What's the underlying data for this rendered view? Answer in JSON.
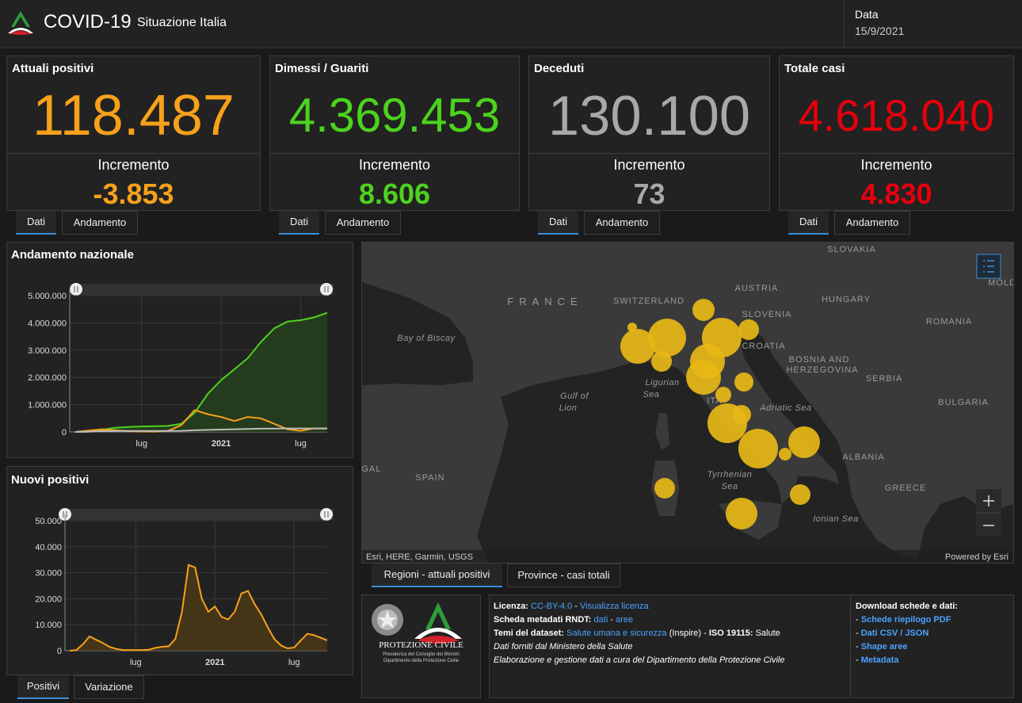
{
  "header": {
    "title": "COVID-19",
    "subtitle": "Situazione Italia",
    "date_label": "Data",
    "date": "15/9/2021"
  },
  "cards": [
    {
      "title": "Attuali positivi",
      "value": "118.487",
      "delta_label": "Incremento",
      "delta": "-3.853",
      "color": "#f7a11a",
      "tabs": [
        "Dati",
        "Andamento"
      ]
    },
    {
      "title": "Dimessi / Guariti",
      "value": "4.369.453",
      "delta_label": "Incremento",
      "delta": "8.606",
      "color": "#4cd31d",
      "tabs": [
        "Dati",
        "Andamento"
      ]
    },
    {
      "title": "Deceduti",
      "value": "130.100",
      "delta_label": "Incremento",
      "delta": "73",
      "color": "#a8a8a8",
      "tabs": [
        "Dati",
        "Andamento"
      ]
    },
    {
      "title": "Totale casi",
      "value": "4.618.040",
      "delta_label": "Incremento",
      "delta": "4.830",
      "color": "#e6000c",
      "tabs": [
        "Dati",
        "Andamento"
      ]
    }
  ],
  "chart_data": [
    {
      "type": "line",
      "title": "Andamento nazionale",
      "categories": [
        null,
        null,
        null,
        null,
        null,
        "lug",
        null,
        null,
        null,
        null,
        null,
        "2021",
        null,
        null,
        null,
        null,
        null,
        "lug",
        null,
        null
      ],
      "series": [
        {
          "color": "#4cd31d",
          "area_color": "#26401c",
          "values": [
            0,
            10000,
            80000,
            150000,
            180000,
            200000,
            210000,
            220000,
            300000,
            700000,
            1400000,
            1900000,
            2300000,
            2700000,
            3300000,
            3800000,
            4050000,
            4100000,
            4200000,
            4369453
          ]
        },
        {
          "color": "#f7a11a",
          "values": [
            0,
            50000,
            100000,
            60000,
            30000,
            15000,
            13000,
            40000,
            250000,
            800000,
            650000,
            550000,
            400000,
            550000,
            500000,
            300000,
            100000,
            40000,
            130000,
            118487
          ]
        },
        {
          "color": "#bdbdbd",
          "values": [
            0,
            12000,
            28000,
            33000,
            35000,
            35000,
            35000,
            36000,
            40000,
            60000,
            75000,
            88000,
            98000,
            110000,
            120000,
            126000,
            127000,
            128000,
            129000,
            130100
          ]
        }
      ],
      "ylim": [
        0,
        5000000
      ],
      "yticks": [
        0,
        {
          "value": 1000000,
          "label": "1.000.000"
        },
        {
          "value": 2000000,
          "label": "2.000.000"
        },
        {
          "value": 3000000,
          "label": "3.000.000"
        },
        {
          "value": 4000000,
          "label": "4.000.000"
        },
        {
          "value": 5000000,
          "label": "5.000.000"
        }
      ],
      "grid": true
    },
    {
      "type": "line",
      "title": "Nuovi positivi",
      "categories": [
        null,
        null,
        null,
        null,
        null,
        null,
        null,
        null,
        null,
        null,
        "lug",
        null,
        null,
        null,
        null,
        null,
        null,
        null,
        null,
        null,
        null,
        null,
        "2021",
        null,
        null,
        null,
        null,
        null,
        null,
        null,
        null,
        null,
        null,
        null,
        "lug",
        null,
        null,
        null,
        null,
        null
      ],
      "series": [
        {
          "color": "#f7a11a",
          "area_color": "#4a3818",
          "values": [
            0,
            200,
            2500,
            5500,
            4200,
            3000,
            1500,
            700,
            300,
            250,
            200,
            250,
            400,
            1100,
            1500,
            1700,
            4500,
            15000,
            33000,
            32000,
            20000,
            15000,
            17000,
            13000,
            12000,
            15000,
            22000,
            23000,
            18000,
            14000,
            9000,
            4500,
            2000,
            900,
            1200,
            4000,
            6500,
            6000,
            5000,
            4000
          ]
        }
      ],
      "ylim": [
        0,
        50000
      ],
      "yticks": [
        0,
        {
          "value": 10000,
          "label": "10.000"
        },
        {
          "value": 20000,
          "label": "20.000"
        },
        {
          "value": 30000,
          "label": "30.000"
        },
        {
          "value": 40000,
          "label": "40.000"
        },
        {
          "value": 50000,
          "label": "50.000"
        }
      ],
      "grid": true,
      "tabs": [
        "Positivi",
        "Variazione"
      ]
    }
  ],
  "map": {
    "labels": [
      "SLOVAKIA",
      "AUSTRIA",
      "HUNGARY",
      "ROMANIA",
      "SWITZERLAND",
      "FRANCE",
      "SLOVENIA",
      "CROATIA",
      "Bay of Biscay",
      "BOSNIA AND",
      "HERZEGOVINA",
      "SERBIA",
      "BULGARIA",
      "Gulf of",
      "Lion",
      "Ligurian",
      "Sea",
      "ITA",
      "Adriatic Sea",
      "GAL",
      "SPAIN",
      "Tyrrhenian",
      "Sea",
      "ALBANIA",
      "GREECE",
      "Ionian Sea",
      "MOLD"
    ],
    "attribution": "Esri, HERE, Garmin, USGS",
    "powered_by": "Powered by Esri",
    "tabs": [
      "Regioni - attuali positivi",
      "Province - casi totali"
    ]
  },
  "footer": {
    "logo": {
      "name": "PROTEZIONE CIVILE",
      "line1": "Presidenza del Consiglio dei Ministri",
      "line2": "Dipartimento della Protezione Civile"
    },
    "license": {
      "label": "Licenza:",
      "link1": "CC-BY-4.0",
      "sep": "-",
      "link2": "Visualizza licenza"
    },
    "metadata": {
      "label": "Scheda metadati RNDT:",
      "link1": "dati",
      "sep": "-",
      "link2": "aree"
    },
    "themes": {
      "label": "Temi del dataset:",
      "link": "Salute umana e sicurezza",
      "note": "(Inspire) -",
      "iso_label": "ISO 19115:",
      "iso": "Salute"
    },
    "source": "Dati forniti dal Ministero della Salute",
    "processing": "Elaborazione e gestione dati a cura del Dipartimento della Protezione Civile",
    "downloads": {
      "title": "Download schede e dati:",
      "bullet": "-",
      "items": [
        "Schede riepilogo PDF",
        "Dati CSV / JSON",
        "Shape aree",
        "Metadata"
      ]
    }
  }
}
